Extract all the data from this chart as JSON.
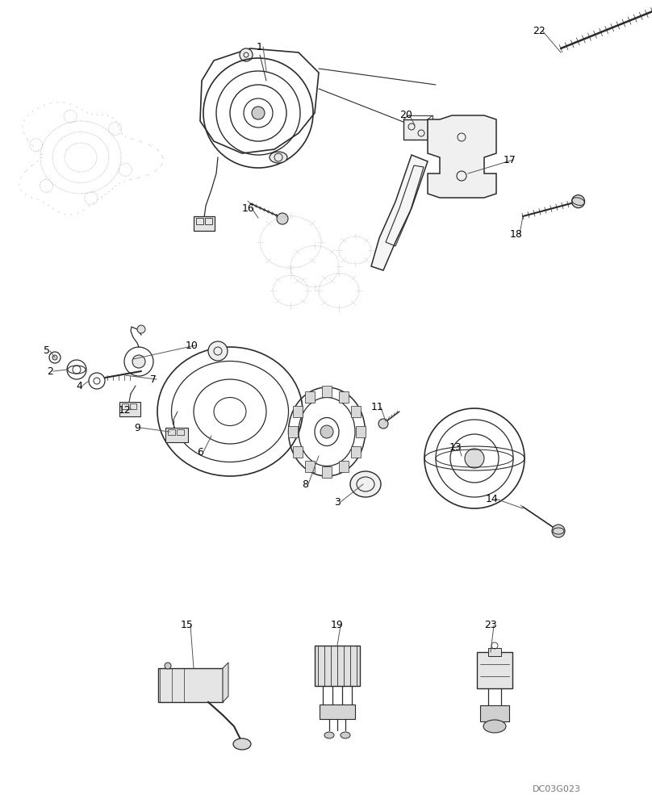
{
  "background_color": "#ffffff",
  "watermark": "DC03G023",
  "line_color": "#2a2a2a",
  "text_color": "#000000",
  "dot_color": "#888888"
}
